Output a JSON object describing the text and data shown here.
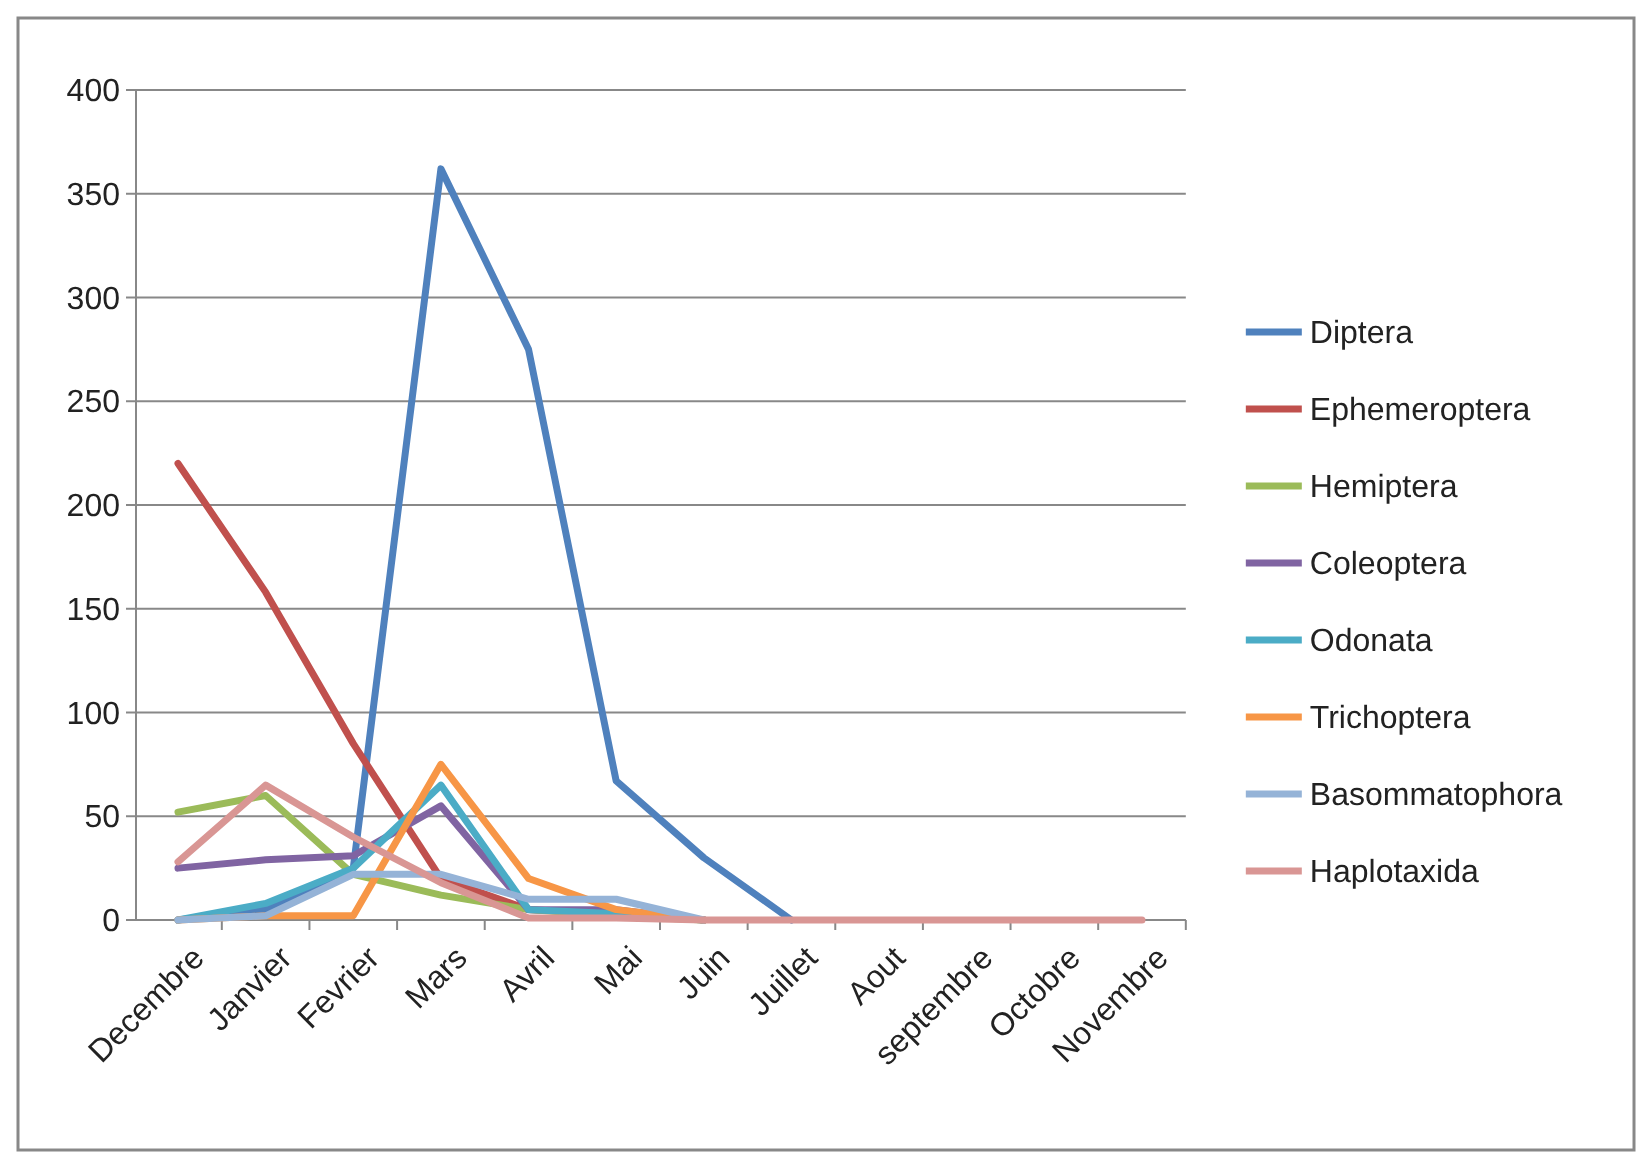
{
  "chart_data": {
    "type": "line",
    "categories": [
      "Decembre",
      "Janvier",
      "Fevrier",
      "Mars",
      "Avril",
      "Mai",
      "Juin",
      "Juillet",
      "Aout",
      "septembre",
      "Octobre",
      "Novembre"
    ],
    "ylim": [
      0,
      400
    ],
    "yticks": [
      0,
      50,
      100,
      150,
      200,
      250,
      300,
      350,
      400
    ],
    "grid": "y",
    "legend": "right",
    "marker": "none",
    "series": [
      {
        "name": "Diptera",
        "color": "#4f81bd",
        "values": [
          0,
          5,
          25,
          362,
          275,
          67,
          30,
          0,
          null,
          null,
          null,
          null
        ]
      },
      {
        "name": "Ephemeroptera",
        "color": "#c0504d",
        "values": [
          220,
          158,
          85,
          20,
          5,
          3,
          0,
          null,
          null,
          null,
          null,
          null
        ]
      },
      {
        "name": "Hemiptera",
        "color": "#9bbb59",
        "values": [
          52,
          60,
          22,
          12,
          5,
          2,
          0,
          null,
          null,
          null,
          null,
          null
        ]
      },
      {
        "name": "Coleoptera",
        "color": "#8064a2",
        "values": [
          25,
          29,
          31,
          55,
          5,
          5,
          0,
          null,
          null,
          null,
          null,
          null
        ]
      },
      {
        "name": "Odonata",
        "color": "#4bacc6",
        "values": [
          0,
          8,
          25,
          65,
          5,
          3,
          0,
          null,
          null,
          null,
          null,
          null
        ]
      },
      {
        "name": "Trichoptera",
        "color": "#f79646",
        "values": [
          0,
          2,
          2,
          75,
          20,
          5,
          0,
          null,
          null,
          null,
          null,
          null
        ]
      },
      {
        "name": "Basommatophora",
        "color": "#95b3d7",
        "values": [
          0,
          2,
          22,
          22,
          10,
          10,
          0,
          null,
          null,
          null,
          null,
          null
        ]
      },
      {
        "name": "Haplotaxida",
        "color": "#d99694",
        "values": [
          28,
          65,
          40,
          18,
          1,
          1,
          0,
          0,
          0,
          0,
          0,
          0
        ]
      }
    ]
  }
}
